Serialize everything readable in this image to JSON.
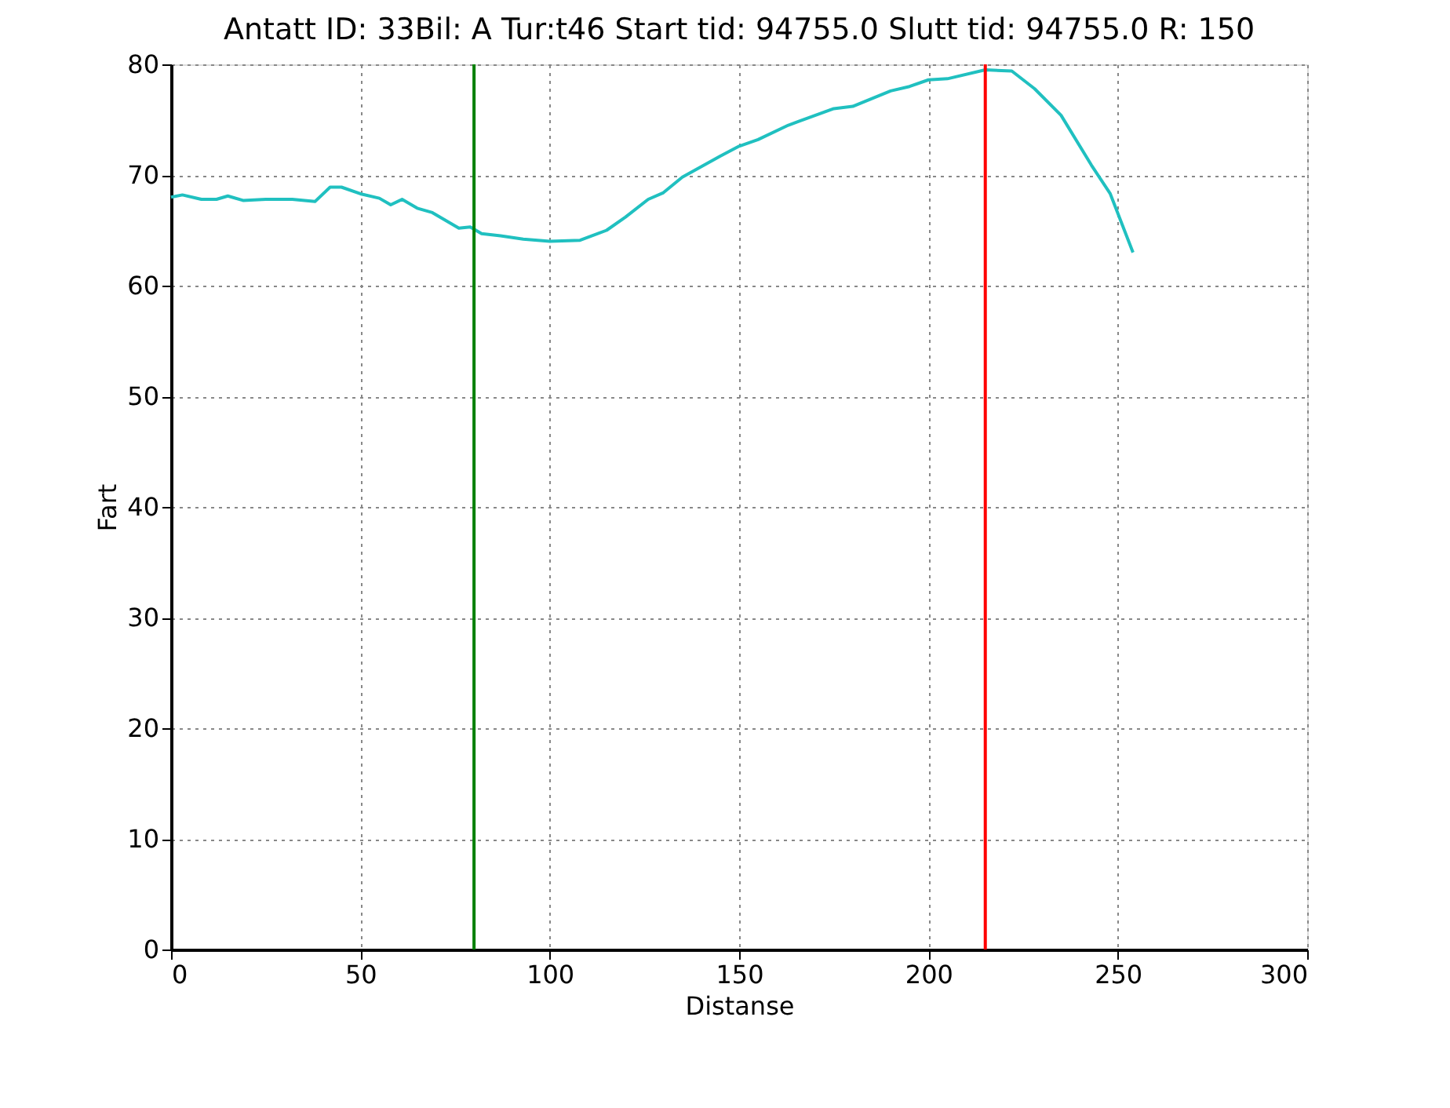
{
  "chart_data": {
    "type": "line",
    "title": "Antatt ID: 33Bil: A Tur:t46 Start tid: 94755.0 Slutt tid: 94755.0 R: 150",
    "xlabel": "Distanse",
    "ylabel": "Fart",
    "x": [
      0,
      3,
      8,
      12,
      15,
      19,
      25,
      32,
      38,
      42,
      45,
      50,
      55,
      58,
      61,
      65,
      69,
      76,
      79,
      82,
      87,
      93,
      100,
      108,
      115,
      120,
      126,
      130,
      135,
      145,
      150,
      155,
      163,
      175,
      180,
      190,
      195,
      200,
      205,
      215,
      222,
      228,
      235,
      243,
      248,
      254
    ],
    "series": [
      {
        "color": "#20c0c0",
        "values": [
          68.0,
          68.2,
          67.8,
          67.8,
          68.1,
          67.7,
          67.8,
          67.8,
          67.6,
          68.9,
          68.9,
          68.3,
          67.9,
          67.3,
          67.8,
          67.0,
          66.6,
          65.2,
          65.3,
          64.7,
          64.5,
          64.2,
          64.0,
          64.1,
          65.0,
          66.2,
          67.8,
          68.4,
          69.8,
          71.7,
          72.6,
          73.2,
          74.5,
          76.0,
          76.2,
          77.6,
          78.0,
          78.6,
          78.7,
          79.5,
          79.4,
          77.8,
          75.4,
          70.9,
          68.3,
          63.0
        ]
      }
    ],
    "xlim": [
      0,
      300
    ],
    "xticks": [
      0,
      50,
      100,
      150,
      200,
      250,
      300
    ],
    "ylim": [
      0,
      80
    ],
    "yticks": [
      0,
      10,
      20,
      30,
      40,
      50,
      60,
      70,
      80
    ],
    "ref_lines": [
      {
        "axis": "x",
        "value": 80,
        "color": "#008000"
      },
      {
        "axis": "x",
        "value": 215,
        "color": "#ff0000"
      }
    ],
    "grid": true,
    "marker": "none",
    "line_style": "solid"
  }
}
